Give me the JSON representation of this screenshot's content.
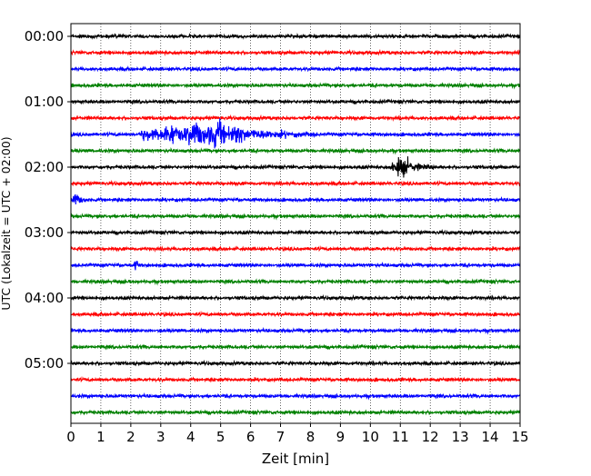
{
  "chart_data": {
    "type": "line",
    "title": "",
    "xlabel": "Zeit  [min]",
    "ylabel": "UTC (Lokalzeit = UTC + 02:00)",
    "xlim": [
      0,
      15
    ],
    "x_ticks": [
      "0",
      "1",
      "2",
      "3",
      "4",
      "5",
      "6",
      "7",
      "8",
      "9",
      "10",
      "11",
      "12",
      "13",
      "14",
      "15"
    ],
    "y_tick_labels": [
      "00:00",
      "01:00",
      "02:00",
      "03:00",
      "04:00",
      "05:00"
    ],
    "row_interval_minutes": 15,
    "row_count": 24,
    "row_colors": [
      "#000000",
      "#ff0000",
      "#0000ff",
      "#008000"
    ],
    "grid": "vertical dotted at each minute",
    "events": [
      {
        "row": 6,
        "start_min": 2.3,
        "end_min": 8.2,
        "peak_min": 4.9,
        "strength": "strong"
      },
      {
        "row": 8,
        "start_min": 10.7,
        "end_min": 12.2,
        "peak_min": 11.0,
        "strength": "medium"
      },
      {
        "row": 10,
        "start_min": 0.0,
        "end_min": 0.6,
        "peak_min": 0.15,
        "strength": "small"
      },
      {
        "row": 14,
        "start_min": 2.1,
        "end_min": 2.3,
        "peak_min": 2.2,
        "strength": "small"
      }
    ]
  }
}
